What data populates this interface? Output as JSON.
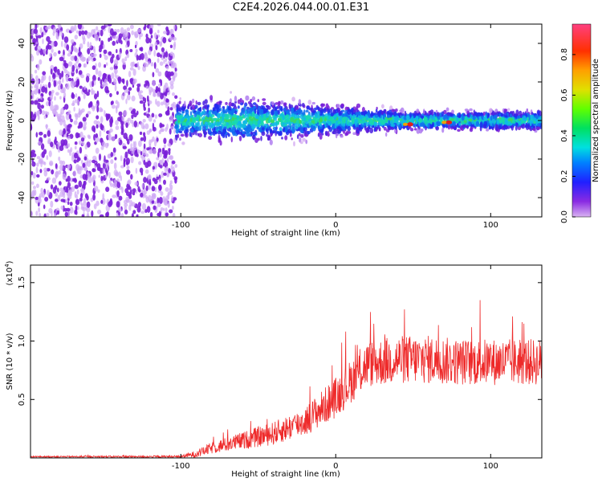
{
  "title": "C2E4.2026.044.00.01.E31",
  "chart_data": [
    {
      "type": "heatmap",
      "name": "spectrogram",
      "xlabel": "Height of straight line (km)",
      "ylabel": "Frequency (Hz)",
      "xlim": [
        -197,
        133
      ],
      "ylim": [
        -50,
        50
      ],
      "x_ticks": [
        -100,
        0,
        100
      ],
      "x_tick_labels": [
        "-100",
        "0",
        "100"
      ],
      "y_ticks": [
        -40,
        -20,
        0,
        20,
        40
      ],
      "y_tick_labels": [
        "-40",
        "-20",
        "0",
        "20",
        "40"
      ],
      "noise_region_x": [
        -197,
        -103
      ],
      "signal_region_x": [
        -103,
        133
      ],
      "signal_band_halfwidth_hz": [
        [
          -100,
          10
        ],
        [
          -60,
          12
        ],
        [
          0,
          8
        ],
        [
          50,
          5
        ],
        [
          133,
          5
        ]
      ],
      "peak_amplitude_points": [
        [
          48,
          -2,
          0.9
        ],
        [
          73,
          -1,
          0.9
        ]
      ],
      "colorbar": {
        "label": "Normalized spectral amplitude",
        "range": [
          0,
          0.95
        ],
        "ticks": [
          0.0,
          0.2,
          0.4,
          0.6,
          0.8
        ],
        "tick_labels": [
          "0.0",
          "0.2",
          "0.4",
          "0.6",
          "0.8"
        ]
      }
    },
    {
      "type": "line",
      "name": "snr",
      "xlabel": "Height of straight line (km)",
      "ylabel": "SNR (10 * v/v)",
      "exponent_label_prefix": "(x10",
      "exponent_label_power": "4",
      "exponent_label_suffix": ")",
      "xlim": [
        -197,
        133
      ],
      "ylim": [
        0,
        1.65
      ],
      "x_ticks": [
        -100,
        0,
        100
      ],
      "x_tick_labels": [
        "-100",
        "0",
        "100"
      ],
      "y_ticks": [
        0.5,
        1.0,
        1.5
      ],
      "y_tick_labels": [
        "0.5",
        "1.0",
        "1.5"
      ],
      "series": [
        {
          "name": "SNR",
          "color": "#ee2a2a",
          "envelope_x": [
            -197,
            -100,
            -90,
            -80,
            -60,
            -40,
            -20,
            0,
            20,
            40,
            60,
            80,
            100,
            133
          ],
          "envelope_base": [
            0.01,
            0.01,
            0.03,
            0.08,
            0.14,
            0.2,
            0.3,
            0.5,
            0.78,
            0.82,
            0.82,
            0.8,
            0.8,
            0.8
          ],
          "envelope_spread": [
            0.01,
            0.02,
            0.06,
            0.1,
            0.15,
            0.2,
            0.25,
            0.35,
            0.4,
            0.42,
            0.42,
            0.4,
            0.4,
            0.4
          ]
        }
      ]
    }
  ],
  "colors": {
    "noise_purple": "#7a1fd8",
    "light_purple": "#cfa8f5",
    "line_red": "#ee2a2a"
  }
}
